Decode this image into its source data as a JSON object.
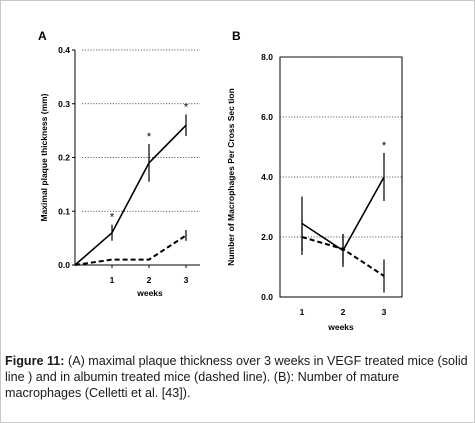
{
  "caption": {
    "label": "Figure 11:",
    "text": " (A) maximal plaque thickness over 3 weeks in VEGF treated mice (solid line ) and in albumin treated mice (dashed line). (B): Number of mature macrophages (Celletti et al. [43])."
  },
  "chart_data": [
    {
      "type": "line",
      "panel": "A",
      "title": "",
      "xlabel": "weeks",
      "ylabel": "Maximal plaque thickness (mm)",
      "x": [
        0,
        1,
        2,
        3
      ],
      "x_tick_labels": [
        "1",
        "2",
        "3"
      ],
      "ylim": [
        0,
        0.4
      ],
      "y_ticks": [
        0.0,
        0.1,
        0.2,
        0.3,
        0.4
      ],
      "y_tick_labels": [
        "0.0",
        "0.1",
        "0.2",
        "0.3",
        "0.4"
      ],
      "grid": "horizontal dotted",
      "colors": {
        "line": "#000000",
        "grid": "#333333"
      },
      "series": [
        {
          "style": "solid",
          "values": [
            0.0,
            0.06,
            0.19,
            0.26
          ],
          "errors": [
            0,
            0.015,
            0.035,
            0.02
          ],
          "annotations": [
            "",
            "*",
            "*",
            "*"
          ]
        },
        {
          "style": "dashed",
          "values": [
            0.0,
            0.01,
            0.01,
            0.055
          ],
          "errors": [
            0,
            0.0,
            0.0,
            0.01
          ],
          "annotations": [
            "",
            "",
            "",
            ""
          ]
        }
      ]
    },
    {
      "type": "line",
      "panel": "B",
      "title": "",
      "xlabel": "weeks",
      "ylabel": "Number of Macrophages Per Cross Sec tion",
      "x": [
        1,
        2,
        3
      ],
      "x_tick_labels": [
        "1",
        "2",
        "3"
      ],
      "ylim": [
        0,
        8
      ],
      "y_ticks": [
        0,
        2,
        4,
        6,
        8
      ],
      "y_tick_labels": [
        "0.0",
        "2.0",
        "4.0",
        "6.0",
        "8.0"
      ],
      "grid": "horizontal dotted",
      "colors": {
        "line": "#000000",
        "grid": "#333333"
      },
      "series": [
        {
          "style": "solid",
          "values": [
            2.45,
            1.55,
            4.0
          ],
          "errors": [
            0.9,
            0.55,
            0.8
          ],
          "annotations": [
            "",
            "",
            "*"
          ]
        },
        {
          "style": "dashed",
          "values": [
            2.0,
            1.6,
            0.7
          ],
          "errors": [
            0.6,
            0.5,
            0.55
          ],
          "annotations": [
            "",
            "",
            ""
          ]
        }
      ]
    }
  ]
}
